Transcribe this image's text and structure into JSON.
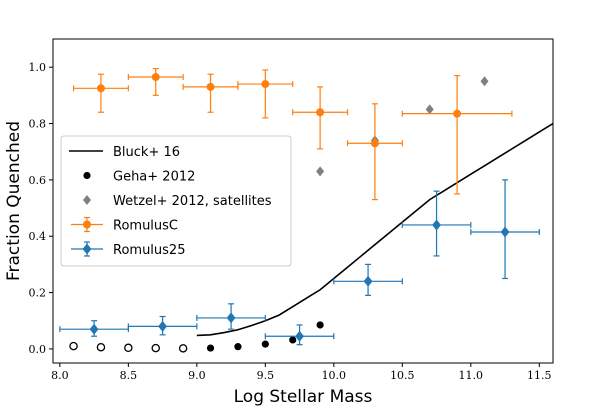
{
  "chart_data": {
    "type": "scatter",
    "xlabel": "Log Stellar Mass",
    "ylabel": "Fraction Quenched",
    "xlim": [
      7.95,
      11.6
    ],
    "ylim": [
      -0.05,
      1.1
    ],
    "xticks": [
      8.0,
      8.5,
      9.0,
      9.5,
      10.0,
      10.5,
      11.0,
      11.5
    ],
    "xtick_labels": [
      "8.0",
      "8.5",
      "9.0",
      "9.5",
      "10.0",
      "10.5",
      "11.0",
      "11.5"
    ],
    "yticks": [
      0.0,
      0.2,
      0.4,
      0.6,
      0.8,
      1.0
    ],
    "ytick_labels": [
      "0.0",
      "0.2",
      "0.4",
      "0.6",
      "0.8",
      "1.0"
    ],
    "grid": false,
    "legend_position": "center-left",
    "series": [
      {
        "name": "Bluck+ 16",
        "kind": "line",
        "color": "#000000",
        "x": [
          9.0,
          9.1,
          9.2,
          9.3,
          9.4,
          9.5,
          9.6,
          9.7,
          9.8,
          9.9,
          10.0,
          10.1,
          10.2,
          10.3,
          10.4,
          10.5,
          10.6,
          10.7,
          10.8,
          10.9,
          11.0,
          11.1,
          11.2,
          11.3,
          11.4,
          11.5,
          11.6
        ],
        "y": [
          0.048,
          0.05,
          0.058,
          0.068,
          0.083,
          0.1,
          0.12,
          0.15,
          0.18,
          0.21,
          0.25,
          0.29,
          0.33,
          0.37,
          0.41,
          0.45,
          0.49,
          0.53,
          0.56,
          0.59,
          0.62,
          0.65,
          0.68,
          0.71,
          0.74,
          0.77,
          0.8
        ]
      },
      {
        "name": "Geha+ 2012",
        "kind": "scatter-circle",
        "color": "#000000",
        "filled": [
          {
            "x": 9.1,
            "y": 0.003
          },
          {
            "x": 9.3,
            "y": 0.008
          },
          {
            "x": 9.5,
            "y": 0.017
          },
          {
            "x": 9.7,
            "y": 0.032
          },
          {
            "x": 9.9,
            "y": 0.085
          }
        ],
        "open": [
          {
            "x": 8.1,
            "y": 0.01
          },
          {
            "x": 8.3,
            "y": 0.006
          },
          {
            "x": 8.5,
            "y": 0.004
          },
          {
            "x": 8.7,
            "y": 0.003
          },
          {
            "x": 8.9,
            "y": 0.002
          }
        ]
      },
      {
        "name": "Wetzel+ 2012, satellites",
        "kind": "scatter-diamond",
        "color": "#808080",
        "points": [
          {
            "x": 9.9,
            "y": 0.63
          },
          {
            "x": 10.3,
            "y": 0.74
          },
          {
            "x": 10.7,
            "y": 0.85
          },
          {
            "x": 11.1,
            "y": 0.95
          }
        ]
      },
      {
        "name": "RomulusC",
        "kind": "errorbar-circle",
        "color": "#ff7f0e",
        "points": [
          {
            "x": 8.3,
            "y": 0.925,
            "xlo": 8.1,
            "xhi": 8.5,
            "ylo": 0.84,
            "yhi": 0.975
          },
          {
            "x": 8.7,
            "y": 0.965,
            "xlo": 8.5,
            "xhi": 8.9,
            "ylo": 0.9,
            "yhi": 0.995
          },
          {
            "x": 9.1,
            "y": 0.93,
            "xlo": 8.9,
            "xhi": 9.3,
            "ylo": 0.84,
            "yhi": 0.975
          },
          {
            "x": 9.5,
            "y": 0.94,
            "xlo": 9.3,
            "xhi": 9.7,
            "ylo": 0.82,
            "yhi": 0.99
          },
          {
            "x": 9.9,
            "y": 0.84,
            "xlo": 9.7,
            "xhi": 10.1,
            "ylo": 0.71,
            "yhi": 0.93
          },
          {
            "x": 10.3,
            "y": 0.73,
            "xlo": 10.1,
            "xhi": 10.5,
            "ylo": 0.53,
            "yhi": 0.87
          },
          {
            "x": 10.9,
            "y": 0.835,
            "xlo": 10.5,
            "xhi": 11.3,
            "ylo": 0.55,
            "yhi": 0.97
          }
        ]
      },
      {
        "name": "Romulus25",
        "kind": "errorbar-diamond",
        "color": "#1f77b4",
        "points": [
          {
            "x": 8.25,
            "y": 0.07,
            "xlo": 8.0,
            "xhi": 8.5,
            "ylo": 0.045,
            "yhi": 0.1
          },
          {
            "x": 8.75,
            "y": 0.08,
            "xlo": 8.5,
            "xhi": 9.0,
            "ylo": 0.05,
            "yhi": 0.115
          },
          {
            "x": 9.25,
            "y": 0.11,
            "xlo": 9.0,
            "xhi": 9.5,
            "ylo": 0.07,
            "yhi": 0.16
          },
          {
            "x": 9.75,
            "y": 0.045,
            "xlo": 9.5,
            "xhi": 10.0,
            "ylo": 0.015,
            "yhi": 0.085
          },
          {
            "x": 10.25,
            "y": 0.24,
            "xlo": 10.0,
            "xhi": 10.5,
            "ylo": 0.19,
            "yhi": 0.3
          },
          {
            "x": 10.75,
            "y": 0.44,
            "xlo": 10.5,
            "xhi": 11.0,
            "ylo": 0.33,
            "yhi": 0.56
          },
          {
            "x": 11.25,
            "y": 0.415,
            "xlo": 11.0,
            "xhi": 11.5,
            "ylo": 0.25,
            "yhi": 0.6
          }
        ]
      }
    ]
  }
}
